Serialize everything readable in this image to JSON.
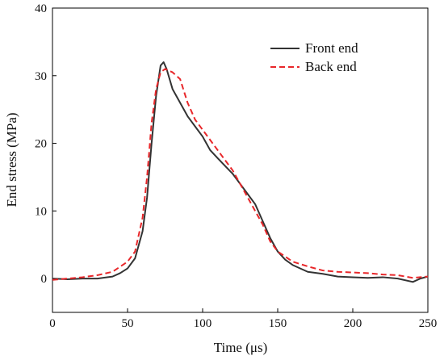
{
  "chart_data": {
    "type": "line",
    "x_label": "Time (μs)",
    "y_label": "End stress (MPa)",
    "xlim": [
      0,
      250
    ],
    "ylim": [
      -5,
      40
    ],
    "xticks": [
      0,
      50,
      100,
      150,
      200,
      250
    ],
    "yticks": [
      0,
      10,
      20,
      30,
      40
    ],
    "legend": "upper right",
    "series": [
      {
        "name": "Front end",
        "color": "#333333",
        "dash": "solid",
        "x": [
          0,
          10,
          20,
          30,
          40,
          45,
          50,
          55,
          60,
          63,
          66,
          69,
          72,
          74,
          76,
          80,
          85,
          90,
          95,
          100,
          105,
          110,
          120,
          130,
          135,
          140,
          145,
          150,
          155,
          160,
          170,
          180,
          190,
          200,
          210,
          220,
          230,
          240,
          245,
          250
        ],
        "values": [
          0,
          -0.1,
          0,
          0,
          0.3,
          0.8,
          1.5,
          3,
          7,
          12,
          20,
          27,
          31.5,
          32,
          31,
          28,
          26,
          24,
          22.5,
          21,
          19,
          17.8,
          15.5,
          12.5,
          11,
          8.5,
          6,
          4,
          2.8,
          2,
          1,
          0.7,
          0.3,
          0.2,
          0.1,
          0.2,
          0,
          -0.5,
          0,
          0.3
        ]
      },
      {
        "name": "Back end",
        "color": "#e8272a",
        "dash": "dashed",
        "x": [
          0,
          20,
          30,
          40,
          50,
          55,
          60,
          63,
          66,
          69,
          72,
          75,
          80,
          85,
          90,
          95,
          100,
          110,
          120,
          130,
          140,
          145,
          150,
          160,
          170,
          180,
          190,
          200,
          210,
          220,
          230,
          240,
          250
        ],
        "values": [
          -0.2,
          0.2,
          0.5,
          1,
          2.5,
          4,
          9,
          15,
          23,
          28,
          30.5,
          31,
          30.5,
          29.5,
          26,
          23.5,
          22,
          19,
          16,
          12,
          8,
          5.5,
          4,
          2.5,
          1.8,
          1.2,
          1,
          0.9,
          0.8,
          0.6,
          0.5,
          0.1,
          0.3
        ]
      }
    ]
  }
}
